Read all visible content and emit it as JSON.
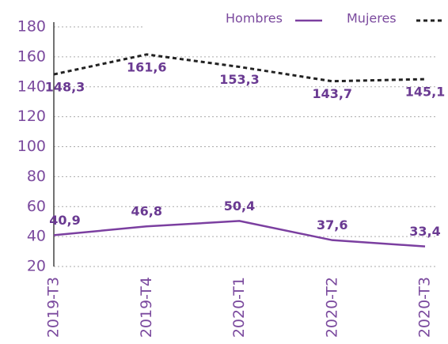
{
  "chart_data": {
    "type": "line",
    "categories": [
      "2019-T3",
      "2019-T4",
      "2020-T1",
      "2020-T2",
      "2020-T3"
    ],
    "series": [
      {
        "name": "Hombres",
        "color": "#7b3fa0",
        "values": [
          40.9,
          46.8,
          50.4,
          37.6,
          33.4
        ],
        "value_labels": [
          "40,9",
          "46,8",
          "50,4",
          "37,6",
          "33,4"
        ]
      },
      {
        "name": "Mujeres",
        "color": "#222222",
        "values": [
          148.3,
          161.6,
          153.3,
          143.7,
          145.1
        ],
        "value_labels": [
          "148,3",
          "161,6",
          "153,3",
          "143,7",
          "145,1"
        ]
      }
    ],
    "ylim": [
      20,
      180
    ],
    "yticks": [
      20,
      40,
      60,
      80,
      100,
      120,
      140,
      160,
      180
    ],
    "grid": true,
    "legend": "top-right"
  }
}
